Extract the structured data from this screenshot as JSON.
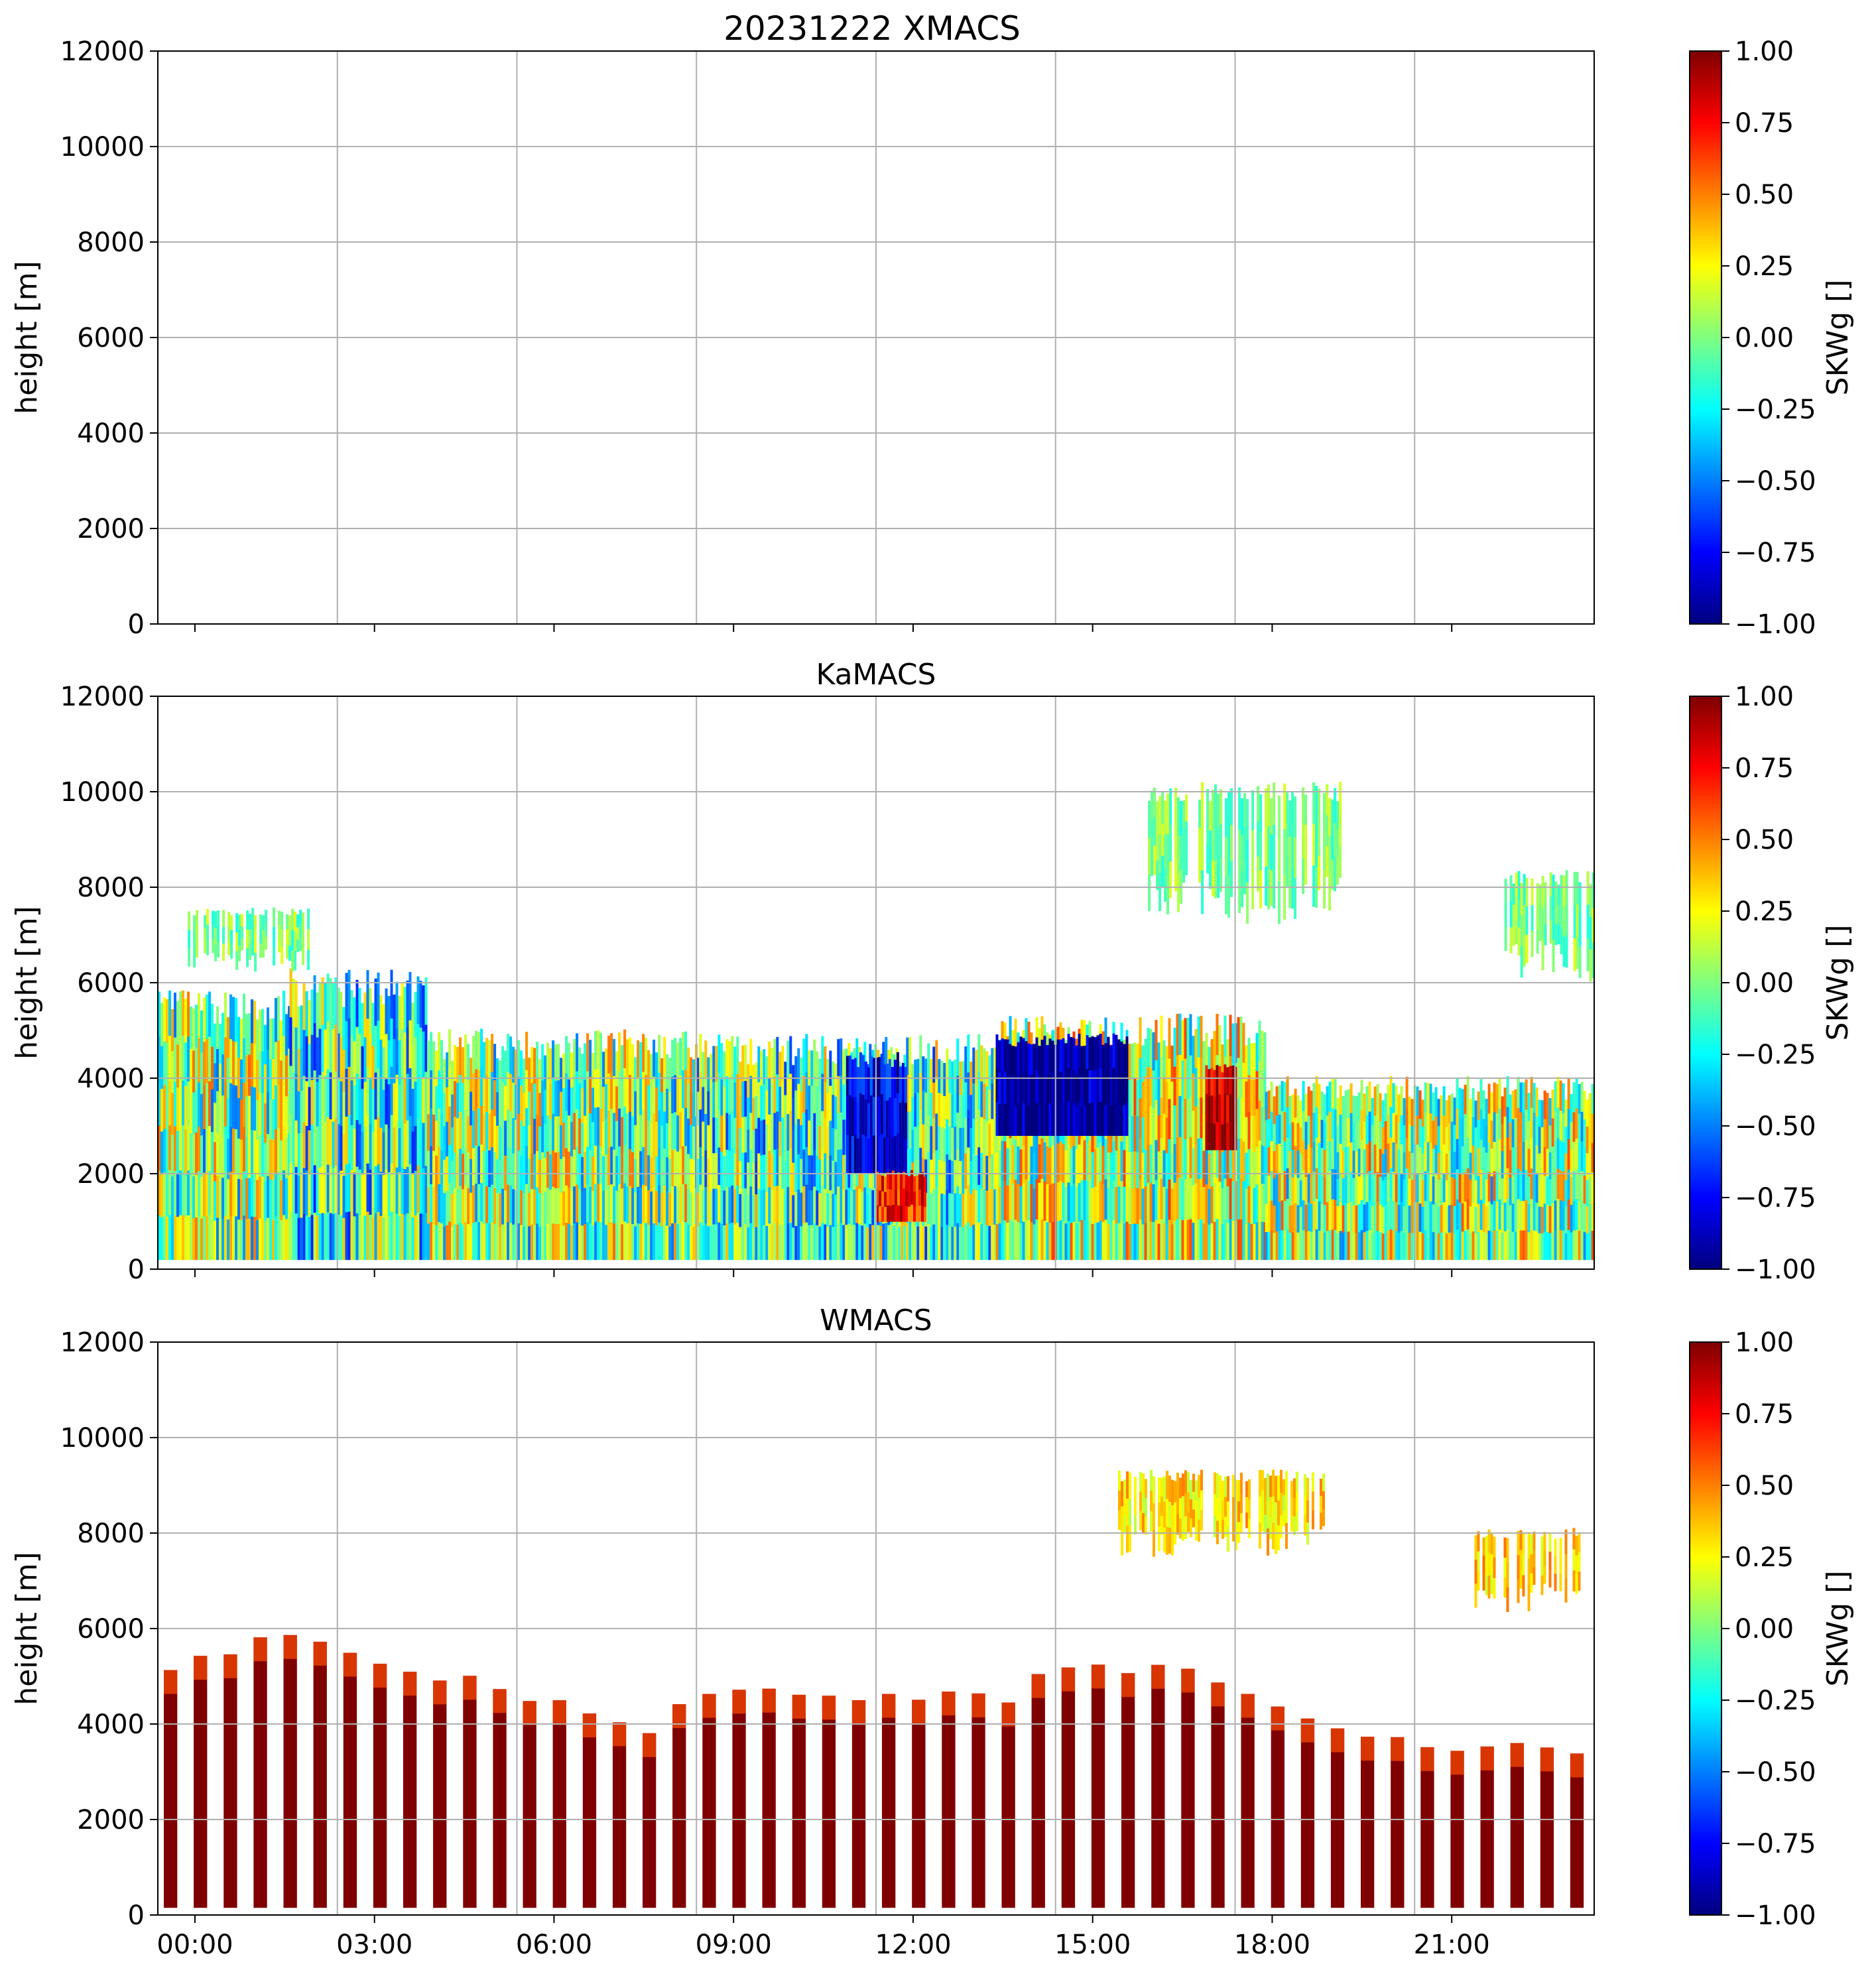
{
  "figure_title": "20231222 XMACS",
  "colors": {
    "background": "#ffffff",
    "grid": "#b0b0b0",
    "axis": "#000000",
    "jet_stops": [
      "#00007f",
      "#0000ff",
      "#007fff",
      "#00ffff",
      "#7fff7f",
      "#ffff00",
      "#ff7f00",
      "#ff0000",
      "#7f0000"
    ]
  },
  "chart_data": [
    {
      "type": "heatmap",
      "title": "",
      "instrument": "XMACS",
      "ylabel": "height [m]",
      "xlabel": "",
      "ylim": [
        0,
        12000
      ],
      "yticks": [
        "0",
        "2000",
        "4000",
        "6000",
        "8000",
        "10000",
        "12000"
      ],
      "xlim_hours": [
        0,
        24
      ],
      "xtick_hours": [
        3,
        6,
        9,
        12,
        15,
        18,
        21
      ],
      "xtick_labels": [],
      "grid": true,
      "colorbar": {
        "label": "SKWg []",
        "range": [
          -1.0,
          1.0
        ],
        "ticks": [
          "−1.00",
          "−0.75",
          "−0.50",
          "−0.25",
          "0.00",
          "0.25",
          "0.50",
          "0.75",
          "1.00"
        ]
      },
      "has_data": false,
      "features": []
    },
    {
      "type": "heatmap",
      "title": "KaMACS",
      "instrument": "KaMACS",
      "ylabel": "height [m]",
      "xlabel": "",
      "ylim": [
        0,
        12000
      ],
      "yticks": [
        "0",
        "2000",
        "4000",
        "6000",
        "8000",
        "10000",
        "12000"
      ],
      "xlim_hours": [
        0,
        24
      ],
      "xtick_hours": [
        3,
        6,
        9,
        12,
        15,
        18,
        21
      ],
      "xtick_labels": [],
      "grid": true,
      "colorbar": {
        "label": "SKWg []",
        "range": [
          -1.0,
          1.0
        ],
        "ticks": [
          "−1.00",
          "−0.75",
          "−0.50",
          "−0.25",
          "0.00",
          "0.25",
          "0.50",
          "0.75",
          "1.00"
        ]
      },
      "has_data": true,
      "features": [
        {
          "kind": "cloud",
          "t0": 0.0,
          "t1": 2.2,
          "base": 200,
          "top": 5500,
          "mean_skw": 0.0
        },
        {
          "kind": "cloud",
          "t0": 2.2,
          "t1": 4.5,
          "base": 200,
          "top": 5900,
          "mean_skw": -0.15
        },
        {
          "kind": "cloud",
          "t0": 4.5,
          "t1": 9.0,
          "base": 200,
          "top": 4700,
          "mean_skw": 0.0
        },
        {
          "kind": "cloud",
          "t0": 9.0,
          "t1": 14.0,
          "base": 200,
          "top": 4600,
          "mean_skw": -0.1
        },
        {
          "kind": "cloud",
          "t0": 14.0,
          "t1": 18.5,
          "base": 200,
          "top": 5000,
          "mean_skw": 0.1
        },
        {
          "kind": "cloud",
          "t0": 18.5,
          "t1": 24.0,
          "base": 200,
          "top": 3800,
          "mean_skw": 0.05
        },
        {
          "kind": "upper_cloud",
          "t0": 0.5,
          "t1": 2.5,
          "base": 6200,
          "top": 7500,
          "mean_skw": 0.0
        },
        {
          "kind": "upper_cloud",
          "t0": 16.5,
          "t1": 20.0,
          "base": 7200,
          "top": 10000,
          "mean_skw": 0.0
        },
        {
          "kind": "upper_cloud",
          "t0": 22.5,
          "t1": 24.0,
          "base": 6000,
          "top": 8200,
          "mean_skw": 0.0
        },
        {
          "kind": "strong_negative",
          "t0": 14.0,
          "t1": 16.2,
          "base": 2800,
          "top": 4800,
          "mean_skw": -0.95
        },
        {
          "kind": "strong_negative",
          "t0": 11.5,
          "t1": 12.5,
          "base": 2000,
          "top": 4400,
          "mean_skw": -0.8
        },
        {
          "kind": "strong_positive",
          "t0": 17.5,
          "t1": 18.0,
          "base": 2500,
          "top": 4200,
          "mean_skw": 0.9
        },
        {
          "kind": "strong_positive",
          "t0": 12.0,
          "t1": 12.8,
          "base": 1000,
          "top": 2000,
          "mean_skw": 0.7
        }
      ]
    },
    {
      "type": "heatmap",
      "title": "WMACS",
      "instrument": "WMACS",
      "ylabel": "height [m]",
      "xlabel": "",
      "ylim": [
        0,
        12000
      ],
      "yticks": [
        "0",
        "2000",
        "4000",
        "6000",
        "8000",
        "10000",
        "12000"
      ],
      "xlim_hours": [
        0,
        24
      ],
      "xtick_hours": [
        0,
        3,
        6,
        9,
        12,
        15,
        18,
        21
      ],
      "xtick_labels": [
        "00:00",
        "03:00",
        "06:00",
        "09:00",
        "12:00",
        "15:00",
        "18:00",
        "21:00"
      ],
      "grid": true,
      "colorbar": {
        "label": "SKWg []",
        "range": [
          -1.0,
          1.0
        ],
        "ticks": [
          "−1.00",
          "−0.75",
          "−0.50",
          "−0.25",
          "0.00",
          "0.25",
          "0.50",
          "0.75",
          "1.00"
        ]
      },
      "has_data": true,
      "features": [
        {
          "kind": "column_series",
          "period_hours": 0.5,
          "duty_fraction": 0.45,
          "t0": 0.1,
          "t1": 23.7,
          "base": 150,
          "mean_skw": 1.0,
          "tops_by_hour": [
            [
              0,
              5200
            ],
            [
              2,
              5900
            ],
            [
              4,
              5200
            ],
            [
              6,
              4600
            ],
            [
              8,
              3800
            ],
            [
              9,
              4700
            ],
            [
              12,
              4600
            ],
            [
              14,
              4500
            ],
            [
              15,
              5300
            ],
            [
              17,
              5100
            ],
            [
              19,
              4300
            ],
            [
              21,
              3400
            ],
            [
              23.7,
              3500
            ]
          ]
        },
        {
          "kind": "upper_cloud",
          "t0": 16.0,
          "t1": 19.5,
          "base": 7500,
          "top": 9200,
          "mean_skw": 0.3
        },
        {
          "kind": "upper_cloud",
          "t0": 22.0,
          "t1": 23.8,
          "base": 6300,
          "top": 8000,
          "mean_skw": 0.35
        }
      ]
    }
  ]
}
